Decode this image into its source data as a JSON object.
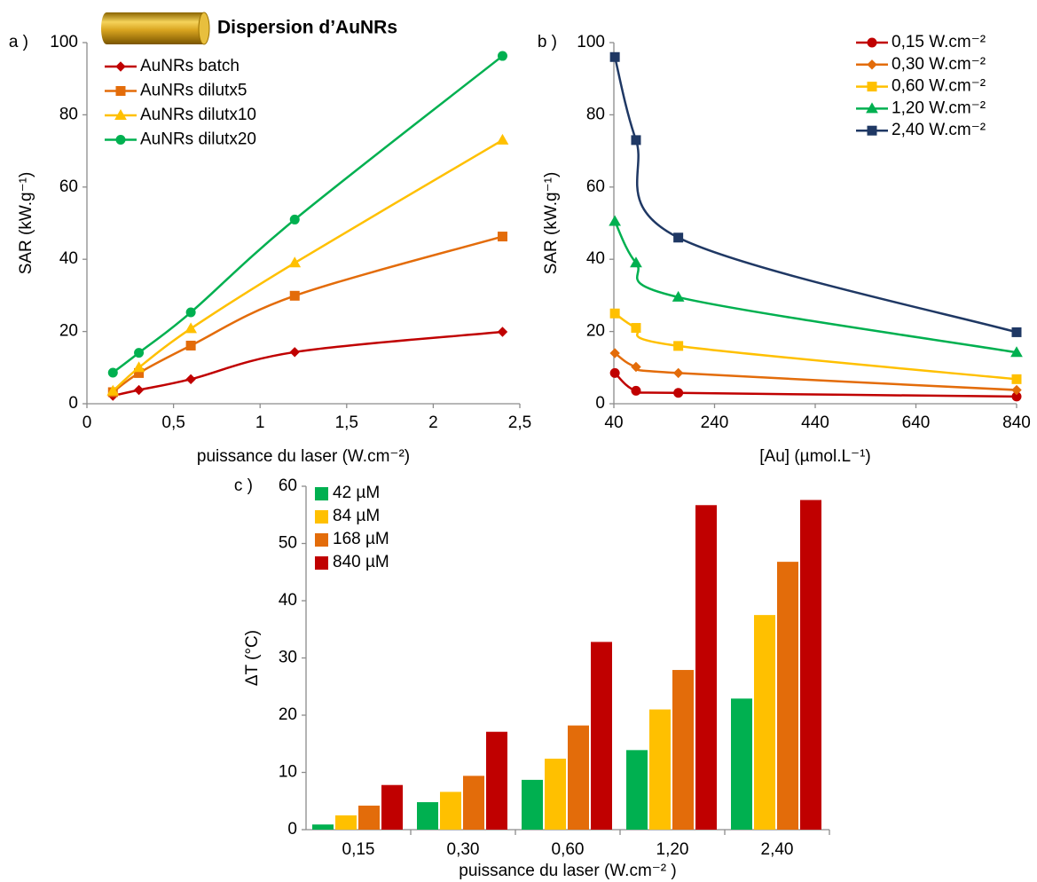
{
  "chart_data": [
    {
      "type": "line",
      "panel_label": "a )",
      "title": "Dispersion d’AuNRs",
      "x_label": "puissance du laser (W.cm⁻²)",
      "y_label": "SAR (kW.g⁻¹)",
      "x": [
        0.15,
        0.3,
        0.6,
        1.2,
        2.4
      ],
      "xlim": [
        0,
        2.5
      ],
      "xticks": [
        0,
        {
          "value": 0.5,
          "label": "0,5"
        },
        1,
        {
          "value": 1.5,
          "label": "1,5"
        },
        2,
        {
          "value": 2.5,
          "label": "2,5"
        }
      ],
      "ylim": [
        0,
        100
      ],
      "yticks": [
        0,
        20,
        40,
        60,
        80,
        100
      ],
      "legend": "upper left",
      "series": [
        {
          "name": "AuNRs batch",
          "color": "#c00000",
          "marker": "diamond",
          "values": [
            2.2,
            3.8,
            6.8,
            14.3,
            19.9
          ]
        },
        {
          "name": "AuNRs dilutx5",
          "color": "#e36c0a",
          "marker": "square",
          "values": [
            3.2,
            8.5,
            16.1,
            29.9,
            46.3
          ]
        },
        {
          "name": "AuNRs dilutx10",
          "color": "#ffc000",
          "marker": "triangle",
          "values": [
            3.5,
            10,
            20.8,
            39,
            73
          ]
        },
        {
          "name": "AuNRs dilutx20",
          "color": "#00b050",
          "marker": "circle",
          "values": [
            8.6,
            14.1,
            25.3,
            51,
            96.3
          ]
        }
      ]
    },
    {
      "type": "line",
      "panel_label": "b )",
      "x_label": "[Au] (µmol.L⁻¹)",
      "y_label": "SAR (kW.g⁻¹)",
      "x": [
        42,
        84,
        168,
        840
      ],
      "xlim": [
        40,
        840
      ],
      "xticks": [
        40,
        240,
        440,
        640,
        840
      ],
      "ylim": [
        0,
        100
      ],
      "yticks": [
        0,
        20,
        40,
        60,
        80,
        100
      ],
      "legend": "upper right",
      "series": [
        {
          "name": "0,15 W.cm⁻²",
          "color": "#c00000",
          "marker": "circle",
          "values": [
            8.5,
            3.6,
            3.0,
            2.0
          ]
        },
        {
          "name": "0,30 W.cm⁻²",
          "color": "#e36c0a",
          "marker": "diamond",
          "values": [
            14,
            10.2,
            8.5,
            3.8
          ]
        },
        {
          "name": "0,60 W.cm⁻²",
          "color": "#ffc000",
          "marker": "square",
          "values": [
            25,
            21,
            16,
            6.8
          ]
        },
        {
          "name": "1,20 W.cm⁻²",
          "color": "#00b050",
          "marker": "triangle",
          "values": [
            50.5,
            39,
            29.5,
            14.2
          ]
        },
        {
          "name": "2,40 W.cm⁻²",
          "color": "#1f3864",
          "marker": "square",
          "values": [
            96,
            73,
            46,
            19.8
          ]
        }
      ]
    },
    {
      "type": "bar",
      "panel_label": "c )",
      "x_label": "puissance du laser (W.cm⁻² )",
      "y_label": "ΔT (°C)",
      "categories": [
        "0,15",
        "0,30",
        "0,60",
        "1,20",
        "2,40"
      ],
      "ylim": [
        0,
        60
      ],
      "yticks": [
        0,
        10,
        20,
        30,
        40,
        50,
        60
      ],
      "legend": "upper left",
      "series": [
        {
          "name": "42 µM",
          "color": "#00b050",
          "values": [
            0.9,
            4.8,
            8.7,
            13.9,
            22.9
          ]
        },
        {
          "name": "84 µM",
          "color": "#ffc000",
          "values": [
            2.5,
            6.6,
            12.4,
            21,
            37.5
          ]
        },
        {
          "name": "168 µM",
          "color": "#e36c0a",
          "values": [
            4.2,
            9.4,
            18.2,
            27.9,
            46.8
          ]
        },
        {
          "name": "840 µM",
          "color": "#c00000",
          "values": [
            7.8,
            17.1,
            32.8,
            56.7,
            57.6
          ]
        }
      ]
    }
  ]
}
